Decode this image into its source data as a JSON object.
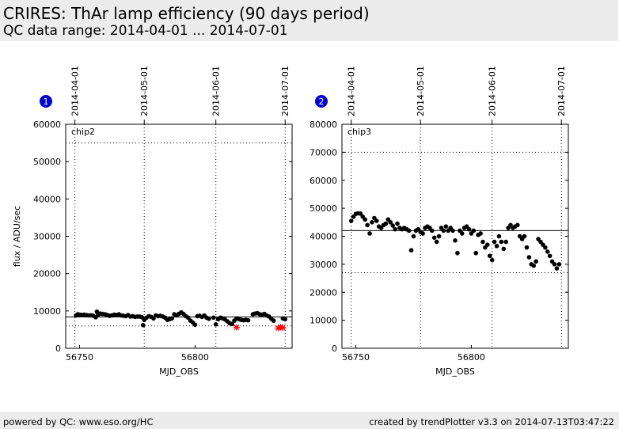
{
  "header": {
    "title": "CRIRES: ThAr lamp efficiency (90 days period)",
    "subtitle": "QC data range: 2014-04-01 ... 2014-07-01"
  },
  "footer": {
    "left": "powered by QC: www.eso.org/HC",
    "right": "created by trendPlotter v3.3 on 2014-07-13T03:47:22"
  },
  "colors": {
    "point": "#000000",
    "outlier": "#ff0000",
    "badge": "#0000cc"
  },
  "chart_data": [
    {
      "type": "scatter",
      "badge": "1",
      "panel_label": "chip2",
      "xlabel": "MJD_OBS",
      "ylabel": "flux / ADU/sec",
      "xlim": [
        56744,
        56842
      ],
      "ylim": [
        0,
        60000
      ],
      "yticks": [
        0,
        10000,
        20000,
        30000,
        40000,
        50000,
        60000
      ],
      "xticks": [
        56750,
        56800
      ],
      "date_markers": [
        {
          "label": "2014-04-01",
          "mjd": 56748
        },
        {
          "label": "2014-05-01",
          "mjd": 56778
        },
        {
          "label": "2014-06-01",
          "mjd": 56809
        },
        {
          "label": "2014-07-01",
          "mjd": 56839
        }
      ],
      "reference_line": 8400,
      "limit_lines": [
        6000,
        55000
      ],
      "grid": true,
      "series": [
        {
          "marker": "dot",
          "x": [
            56748.5,
            56749.2,
            56750,
            56751,
            56752,
            56753,
            56754,
            56755,
            56756,
            56757,
            56757.5,
            56758,
            56759,
            56760,
            56761,
            56762,
            56763,
            56764,
            56765,
            56766,
            56767,
            56768,
            56769,
            56770,
            56771,
            56772,
            56773,
            56774,
            56775,
            56776,
            56777,
            56777.5,
            56778,
            56779,
            56780,
            56781,
            56782,
            56783,
            56784,
            56785,
            56786,
            56787,
            56788,
            56789,
            56790,
            56791,
            56792,
            56793,
            56794,
            56795,
            56796,
            56797,
            56798,
            56799,
            56800,
            56801,
            56802,
            56803,
            56804,
            56805,
            56806,
            56808,
            56809,
            56810,
            56811,
            56812,
            56813,
            56814,
            56815,
            56816,
            56817,
            56818,
            56819,
            56820,
            56821,
            56822,
            56823,
            56825,
            56826,
            56827,
            56828,
            56829,
            56830,
            56831,
            56832,
            56833,
            56834,
            56838,
            56839
          ],
          "y": [
            8800,
            9100,
            9000,
            8950,
            9000,
            8900,
            8800,
            8850,
            8700,
            8300,
            9800,
            8900,
            9300,
            9200,
            9100,
            8900,
            8700,
            8800,
            9000,
            8900,
            9100,
            8800,
            8700,
            8600,
            8900,
            8500,
            8600,
            8400,
            8500,
            8500,
            8300,
            6200,
            7600,
            8200,
            8600,
            8400,
            8000,
            8800,
            8600,
            8700,
            8500,
            8200,
            7600,
            7800,
            8000,
            9100,
            8800,
            9200,
            9600,
            9200,
            8600,
            8200,
            7400,
            6900,
            6300,
            8600,
            8700,
            8400,
            8800,
            8200,
            7900,
            8200,
            6400,
            7800,
            8200,
            8000,
            7700,
            7200,
            6700,
            6500,
            7400,
            8000,
            7800,
            7600,
            7500,
            7600,
            7500,
            9100,
            9300,
            9400,
            9100,
            9000,
            9200,
            8800,
            8500,
            7900,
            7400,
            8000,
            7800
          ]
        },
        {
          "marker": "cross",
          "x": [
            56818,
            56836,
            56837,
            56838
          ],
          "y": [
            5600,
            5400,
            5700,
            5500
          ]
        }
      ]
    },
    {
      "type": "scatter",
      "badge": "2",
      "panel_label": "chip3",
      "xlabel": "MJD_OBS",
      "ylabel": "",
      "xlim": [
        56744,
        56842
      ],
      "ylim": [
        0,
        80000
      ],
      "yticks": [
        0,
        10000,
        20000,
        30000,
        40000,
        50000,
        60000,
        70000,
        80000
      ],
      "xticks": [
        56750,
        56800
      ],
      "date_markers": [
        {
          "label": "2014-04-01",
          "mjd": 56748
        },
        {
          "label": "2014-05-01",
          "mjd": 56778
        },
        {
          "label": "2014-06-01",
          "mjd": 56809
        },
        {
          "label": "2014-07-01",
          "mjd": 56839
        }
      ],
      "reference_line": 42000,
      "limit_lines": [
        27000,
        70000
      ],
      "grid": true,
      "series": [
        {
          "marker": "dot",
          "x": [
            56748,
            56749,
            56750,
            56751,
            56752,
            56753,
            56754,
            56755,
            56756,
            56757,
            56758,
            56759,
            56760,
            56761,
            56762,
            56763,
            56764,
            56765,
            56766,
            56767,
            56768,
            56769,
            56770,
            56771,
            56772,
            56773,
            56774,
            56775,
            56776,
            56777,
            56778,
            56779,
            56780,
            56781,
            56782,
            56783,
            56784,
            56785,
            56786,
            56787,
            56788,
            56789,
            56790,
            56791,
            56792,
            56793,
            56794,
            56795,
            56796,
            56797,
            56798,
            56799,
            56800,
            56801,
            56802,
            56803,
            56804,
            56805,
            56806,
            56807,
            56808,
            56809,
            56810,
            56811,
            56812,
            56813,
            56814,
            56815,
            56816,
            56817,
            56818,
            56819,
            56820,
            56821,
            56822,
            56823,
            56824,
            56825,
            56826,
            56827,
            56828,
            56829,
            56830,
            56831,
            56832,
            56833,
            56834,
            56835,
            56836,
            56837,
            56838
          ],
          "y": [
            45500,
            47000,
            48000,
            48200,
            48100,
            47000,
            46000,
            44000,
            41000,
            45000,
            46500,
            45500,
            43500,
            43000,
            44000,
            44500,
            46000,
            45000,
            43800,
            42500,
            44500,
            43000,
            42500,
            43000,
            42500,
            42000,
            35000,
            40000,
            42000,
            42500,
            41500,
            41000,
            43000,
            43500,
            43000,
            42000,
            39500,
            38000,
            40000,
            43000,
            42000,
            43500,
            42000,
            43000,
            42000,
            38500,
            34000,
            42000,
            41000,
            43000,
            43500,
            42500,
            41000,
            42000,
            34000,
            40500,
            41000,
            38000,
            36000,
            37000,
            33000,
            31500,
            38000,
            36500,
            40000,
            38000,
            35500,
            38000,
            43000,
            44000,
            43000,
            43500,
            44000,
            40000,
            39000,
            40000,
            36000,
            32500,
            30000,
            29500,
            31000,
            39000,
            38000,
            37000,
            36000,
            34500,
            33000,
            31000,
            30000,
            28500,
            30000
          ]
        }
      ]
    }
  ]
}
